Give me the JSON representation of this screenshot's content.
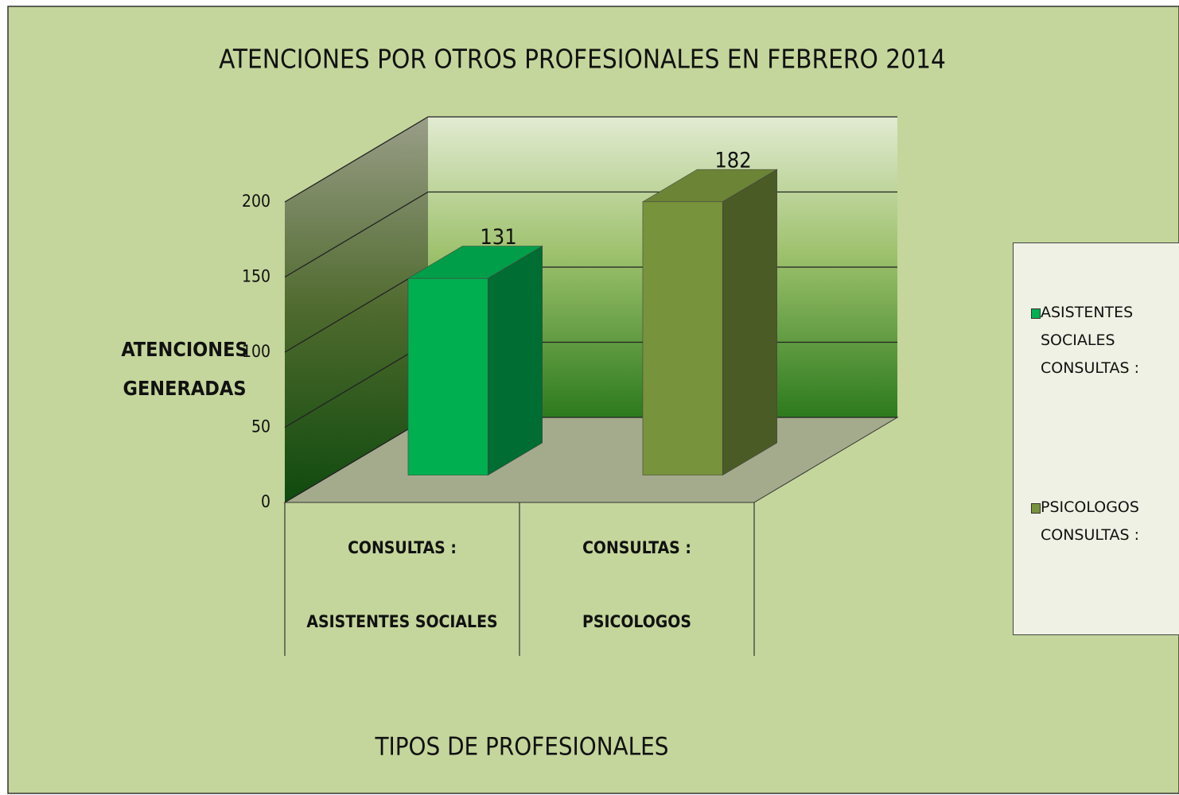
{
  "chart_data": {
    "type": "bar",
    "title": "ATENCIONES POR OTROS PROFESIONALES EN  FEBRERO  2014",
    "y_label": [
      "ATENCIONES",
      "GENERADAS"
    ],
    "x_label": "TIPOS DE PROFESIONALES",
    "categories": [
      [
        "CONSULTAS :",
        "ASISTENTES   SOCIALES"
      ],
      [
        "CONSULTAS :",
        "PSICOLOGOS"
      ]
    ],
    "series": [
      {
        "name": "ASISTENTES SOCIALES CONSULTAS :",
        "color": "#00b050",
        "values": [
          131,
          null
        ]
      },
      {
        "name": "PSICOLOGOS CONSULTAS :",
        "color": "#77933c",
        "values": [
          null,
          182
        ]
      }
    ],
    "ylim": [
      0,
      200
    ],
    "yticks": [
      0,
      50,
      100,
      150,
      200
    ],
    "grid": true,
    "legend": "right"
  }
}
